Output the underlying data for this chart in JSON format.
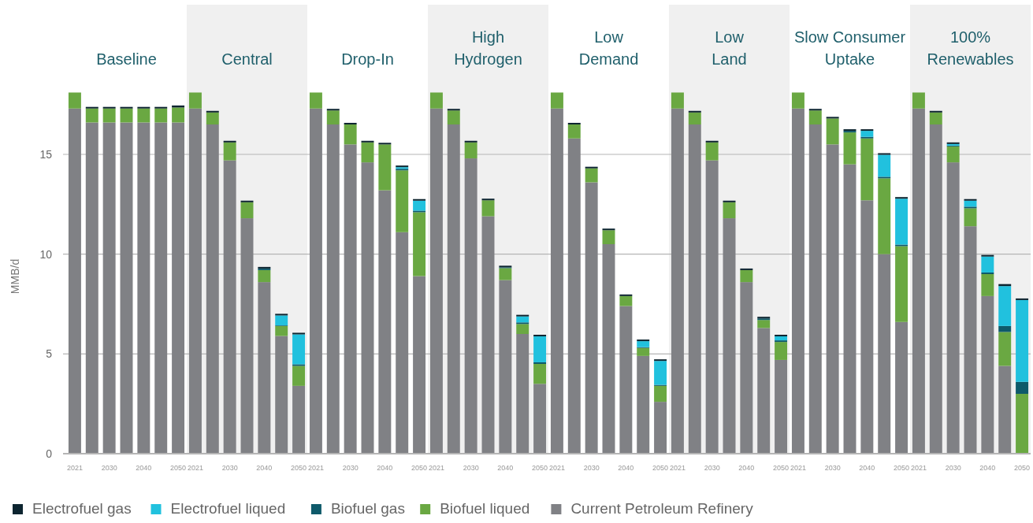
{
  "chart_data": {
    "type": "bar",
    "stacked": true,
    "ylabel": "MMB/d",
    "ylim": [
      0,
      22.5
    ],
    "yticks": [
      0,
      5,
      10,
      15
    ],
    "grid": "y",
    "legend": "bottom",
    "categories": [
      "2021",
      null,
      "2030",
      null,
      "2040",
      null,
      "2050",
      "2021",
      null,
      "2030",
      null,
      "2040",
      null,
      "2050",
      "2021",
      null,
      "2030",
      null,
      "2040",
      null,
      "2050",
      "2021",
      null,
      "2030",
      null,
      "2040",
      null,
      "2050",
      "2021",
      null,
      "2030",
      null,
      "2040",
      null,
      "2050",
      "2021",
      null,
      "2030",
      null,
      "2040",
      null,
      "2050",
      "2021",
      null,
      "2030",
      null,
      "2040",
      null,
      "2050",
      "2021",
      null,
      "2030",
      null,
      "2040",
      null,
      "2050"
    ],
    "annotations": [
      "Baseline",
      "Central",
      "Drop-In",
      "High Hydrogen",
      "Low Demand",
      "Low Land",
      "Slow Consumer Uptake",
      "100% Renewables"
    ],
    "series": [
      {
        "name": "Current Petroleum Refinery",
        "color": "#808185",
        "values": [
          17.3,
          16.6,
          16.6,
          16.6,
          16.6,
          16.6,
          16.6,
          17.3,
          16.5,
          14.7,
          11.8,
          8.6,
          5.9,
          3.4,
          17.3,
          16.5,
          15.5,
          14.6,
          13.2,
          11.1,
          8.9,
          17.3,
          16.5,
          14.8,
          11.9,
          8.7,
          6.0,
          3.5,
          17.3,
          15.8,
          13.6,
          10.5,
          7.4,
          4.9,
          2.6,
          17.3,
          16.5,
          14.7,
          11.8,
          8.6,
          6.3,
          4.7,
          17.3,
          16.5,
          15.5,
          14.5,
          12.7,
          10.0,
          6.6,
          17.3,
          16.5,
          14.6,
          11.4,
          7.9,
          4.4,
          0
        ]
      },
      {
        "name": "Biofuel liqued",
        "color": "#6aa842",
        "values": [
          0.8,
          0.7,
          0.7,
          0.7,
          0.7,
          0.7,
          0.75,
          0.8,
          0.6,
          0.9,
          0.8,
          0.6,
          0.5,
          1.0,
          0.8,
          0.7,
          1.0,
          1.0,
          2.3,
          3.1,
          3.2,
          0.8,
          0.7,
          0.8,
          0.8,
          0.6,
          0.5,
          1.0,
          0.8,
          0.7,
          0.7,
          0.7,
          0.5,
          0.4,
          0.8,
          0.8,
          0.6,
          0.9,
          0.8,
          0.6,
          0.4,
          0.9,
          0.8,
          0.7,
          1.3,
          1.6,
          3.1,
          3.8,
          3.8,
          0.8,
          0.6,
          0.8,
          0.9,
          1.1,
          1.7,
          3.0
        ]
      },
      {
        "name": "Biofuel gas",
        "color": "#0e5a6a",
        "values": [
          0,
          0,
          0,
          0,
          0,
          0,
          0,
          0,
          0,
          0,
          0,
          0.08,
          0.03,
          0.08,
          0,
          0,
          0,
          0,
          0,
          0.08,
          0.08,
          0,
          0,
          0,
          0,
          0.04,
          0.08,
          0.08,
          0,
          0,
          0,
          0,
          0,
          0.04,
          0.05,
          0,
          0,
          0,
          0,
          0,
          0.08,
          0.08,
          0,
          0,
          0,
          0.08,
          0.08,
          0.08,
          0.08,
          0,
          0,
          0.04,
          0.08,
          0.08,
          0.3,
          0.6
        ]
      },
      {
        "name": "Electrofuel liqued",
        "color": "#21c1de",
        "values": [
          0,
          0,
          0,
          0,
          0,
          0,
          0,
          0,
          0,
          0,
          0,
          0,
          0.5,
          1.5,
          0,
          0,
          0,
          0,
          0,
          0.08,
          0.5,
          0,
          0,
          0,
          0,
          0,
          0.3,
          1.3,
          0,
          0,
          0,
          0,
          0,
          0.3,
          1.2,
          0,
          0,
          0,
          0,
          0,
          0,
          0.2,
          0,
          0,
          0,
          0,
          0.3,
          1.1,
          2.3,
          0,
          0,
          0.08,
          0.3,
          0.8,
          2.0,
          4.1
        ]
      },
      {
        "name": "Electrofuel gas",
        "color": "#0d2530",
        "values": [
          0,
          0.08,
          0.08,
          0.08,
          0.08,
          0.08,
          0.1,
          0,
          0.08,
          0.08,
          0.08,
          0.08,
          0.08,
          0.08,
          0,
          0.08,
          0.08,
          0.08,
          0.08,
          0.08,
          0.08,
          0,
          0.08,
          0.08,
          0.08,
          0.08,
          0.08,
          0.08,
          0,
          0.08,
          0.08,
          0.08,
          0.08,
          0.08,
          0.08,
          0,
          0.08,
          0.08,
          0.08,
          0.08,
          0.08,
          0.08,
          0,
          0.08,
          0.08,
          0.08,
          0.08,
          0.08,
          0.08,
          0,
          0.08,
          0.08,
          0.08,
          0.08,
          0.1,
          0.08
        ]
      }
    ]
  }
}
